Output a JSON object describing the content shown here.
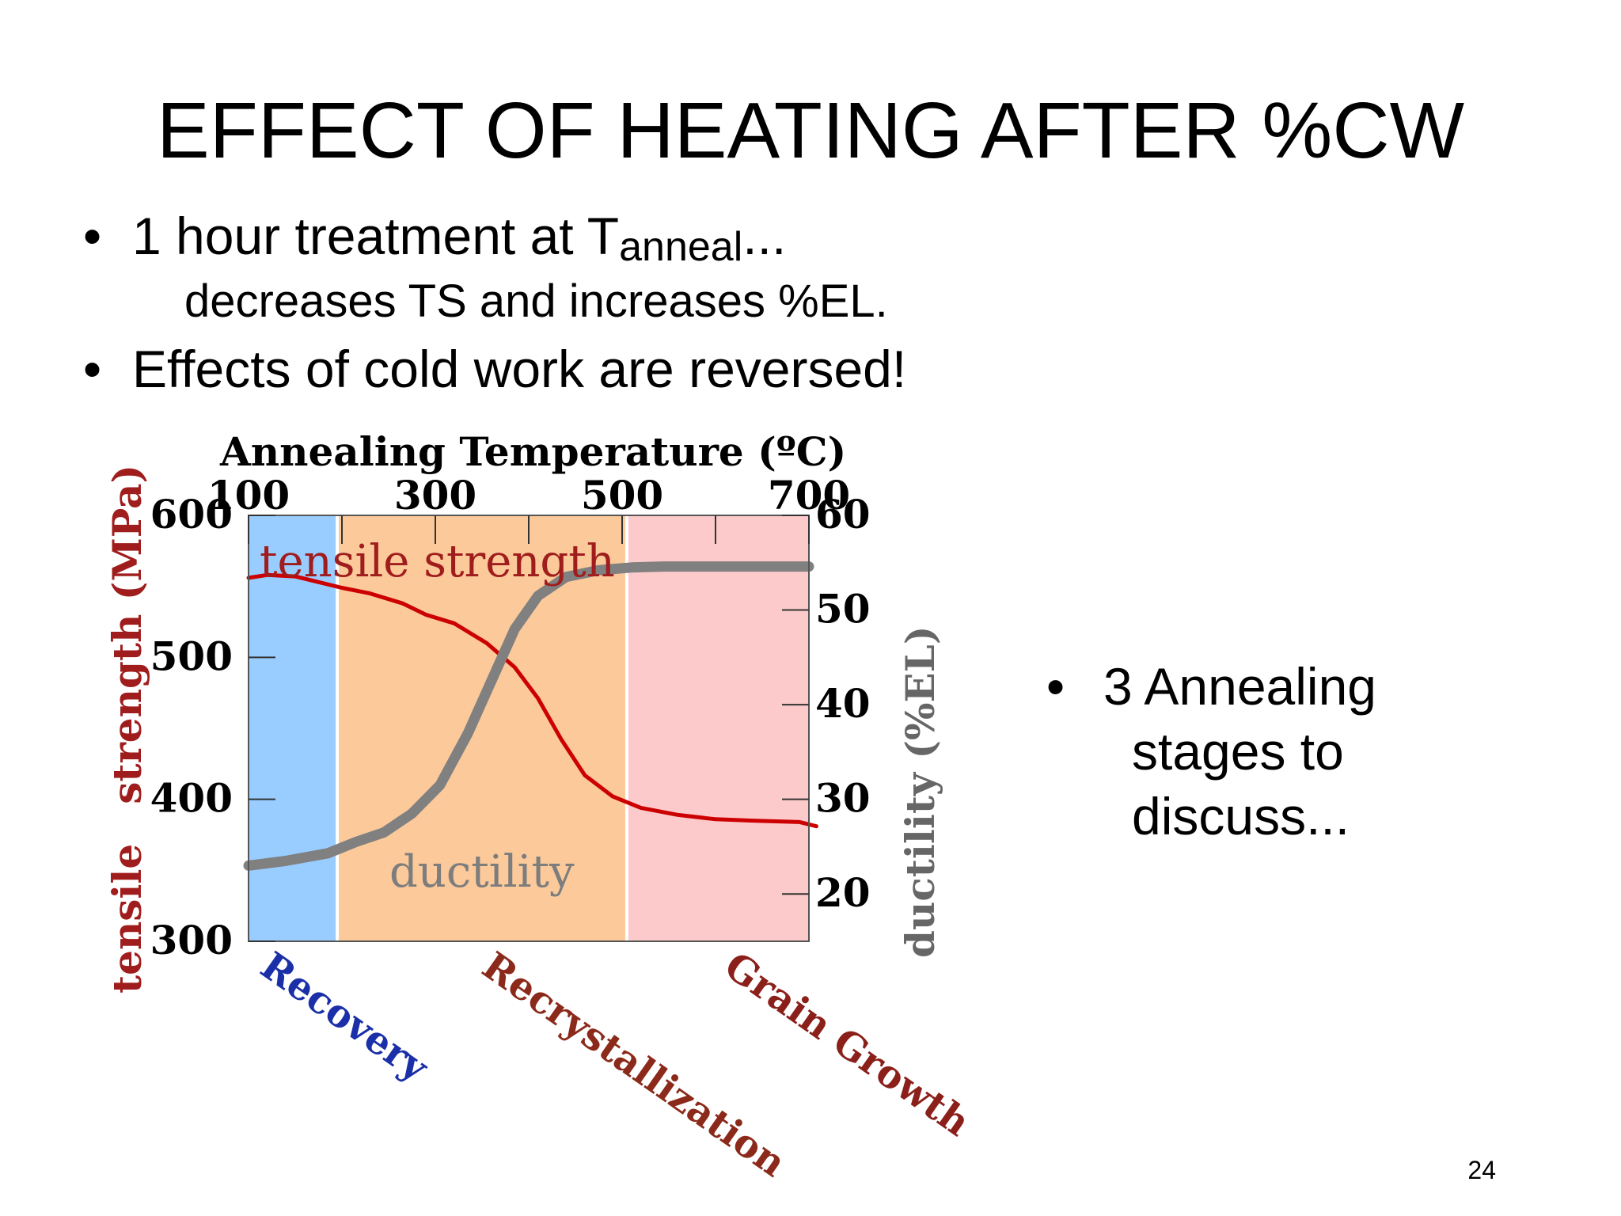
{
  "slide": {
    "title": "EFFECT OF HEATING AFTER %CW",
    "bullet1_main": "1 hour treatment at T",
    "bullet1_sub": "anneal",
    "bullet1_tail": "...",
    "bullet1_cont": "decreases TS and increases %EL.",
    "bullet2": "Effects of cold work are reversed!",
    "side_note_lines": [
      "3 Annealing",
      "stages to",
      "discuss..."
    ],
    "page_number": "24",
    "bullet_char": "•"
  },
  "chart_data": {
    "type": "line",
    "xlabel": "Annealing Temperature (ºC)",
    "x_ticks": [
      100,
      300,
      500,
      700
    ],
    "xlim": [
      100,
      700
    ],
    "ylabel_left": "tensile strength (MPa)",
    "ylabel_left_parts": [
      "tensile",
      "strength (MPa)"
    ],
    "y_ticks_left": [
      300,
      400,
      500,
      600
    ],
    "ylim_left": [
      300,
      600
    ],
    "ylabel_right": "ductility (%EL)",
    "y_ticks_right": [
      20,
      30,
      40,
      50,
      60
    ],
    "ylim_right": [
      15,
      60
    ],
    "regions": [
      {
        "name": "Recovery",
        "x0": 100,
        "x1": 195,
        "fill": "#99ccff",
        "label_color": "#1a2fa8"
      },
      {
        "name": "Recrystallization",
        "x0": 195,
        "x1": 505,
        "fill": "#fbc99a",
        "label_color": "#8b2a1a"
      },
      {
        "name": "Grain Growth",
        "x0": 505,
        "x1": 700,
        "fill": "#fccaca",
        "label_color": "#8b1f1a"
      }
    ],
    "series": [
      {
        "name": "tensile strength",
        "axis": "left",
        "color": "#cc0000",
        "x": [
          100,
          120,
          150,
          175,
          200,
          230,
          265,
          290,
          320,
          355,
          385,
          410,
          435,
          460,
          490,
          520,
          560,
          600,
          640,
          690,
          708
        ],
        "y": [
          556,
          558,
          557,
          553,
          549,
          545,
          538,
          530,
          524,
          510,
          493,
          471,
          442,
          417,
          402,
          394,
          389,
          386,
          385,
          384,
          381
        ]
      },
      {
        "name": "ductility",
        "axis": "right",
        "color": "#808080",
        "x": [
          100,
          140,
          185,
          215,
          245,
          275,
          305,
          335,
          360,
          385,
          410,
          440,
          475,
          510,
          545,
          600,
          650,
          700
        ],
        "y": [
          23,
          23.5,
          24.3,
          25.5,
          26.5,
          28.5,
          31.5,
          37,
          42.5,
          48,
          51.5,
          53.5,
          54.2,
          54.5,
          54.6,
          54.6,
          54.6,
          54.6
        ]
      }
    ]
  }
}
